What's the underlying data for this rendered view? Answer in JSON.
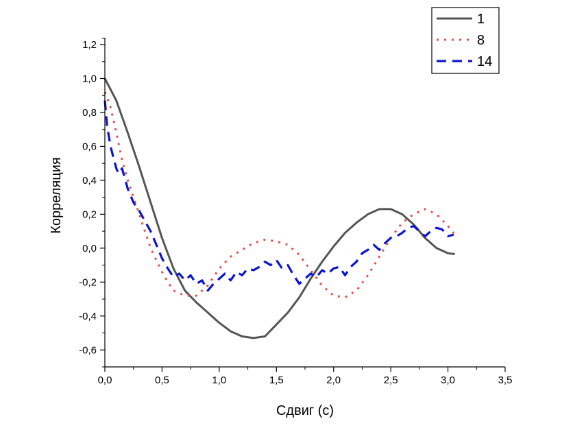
{
  "chart_data": {
    "type": "line",
    "title": "",
    "xlabel": "Сдвиг (с)",
    "ylabel": "Корреляция",
    "xlim": [
      0,
      3.5
    ],
    "ylim": [
      -0.7,
      1.2
    ],
    "x_ticks": [
      0,
      0.5,
      1,
      1.5,
      2,
      2.5,
      3,
      3.5
    ],
    "x_tick_labels": [
      "0,0",
      "0,5",
      "1,0",
      "1,5",
      "2,0",
      "2,5",
      "3,0",
      "3,5"
    ],
    "y_ticks": [
      -0.6,
      -0.4,
      -0.2,
      0,
      0.2,
      0.4,
      0.6,
      0.8,
      1.0,
      1.2
    ],
    "y_tick_labels": [
      "-0,6",
      "-0,4",
      "-0,2",
      "0,0",
      "0,2",
      "0,4",
      "0,6",
      "0,8",
      "1,0",
      "1,2"
    ],
    "grid": false,
    "legend_position": "top-right",
    "series": [
      {
        "name": "1",
        "color": "#555555",
        "style": "solid",
        "x": [
          0,
          0.1,
          0.2,
          0.3,
          0.4,
          0.5,
          0.6,
          0.7,
          0.8,
          0.9,
          1.0,
          1.1,
          1.2,
          1.3,
          1.4,
          1.5,
          1.6,
          1.7,
          1.8,
          1.9,
          2.0,
          2.1,
          2.2,
          2.3,
          2.4,
          2.5,
          2.6,
          2.7,
          2.8,
          2.9,
          3.0,
          3.06
        ],
        "y": [
          1.0,
          0.87,
          0.68,
          0.48,
          0.27,
          0.06,
          -0.12,
          -0.25,
          -0.32,
          -0.38,
          -0.44,
          -0.49,
          -0.52,
          -0.53,
          -0.52,
          -0.45,
          -0.38,
          -0.29,
          -0.18,
          -0.08,
          0.01,
          0.09,
          0.15,
          0.2,
          0.23,
          0.23,
          0.2,
          0.14,
          0.06,
          0.0,
          -0.03,
          -0.035
        ]
      },
      {
        "name": "8",
        "color": "#e0524a",
        "style": "dotted",
        "x": [
          0,
          0.05,
          0.1,
          0.15,
          0.2,
          0.3,
          0.4,
          0.5,
          0.55,
          0.6,
          0.7,
          0.8,
          0.9,
          1.0,
          1.1,
          1.2,
          1.3,
          1.4,
          1.5,
          1.6,
          1.7,
          1.8,
          1.9,
          2.0,
          2.1,
          2.2,
          2.3,
          2.4,
          2.5,
          2.6,
          2.7,
          2.8,
          2.9,
          3.0,
          3.06
        ],
        "y": [
          0.92,
          0.83,
          0.68,
          0.52,
          0.4,
          0.2,
          0.0,
          -0.14,
          -0.2,
          -0.25,
          -0.28,
          -0.28,
          -0.22,
          -0.12,
          -0.05,
          -0.01,
          0.03,
          0.05,
          0.04,
          0.02,
          -0.04,
          -0.13,
          -0.22,
          -0.28,
          -0.29,
          -0.25,
          -0.16,
          -0.05,
          0.06,
          0.15,
          0.2,
          0.23,
          0.2,
          0.13,
          0.08
        ]
      },
      {
        "name": "14",
        "color": "#0a14d2",
        "style": "dashed",
        "x": [
          0,
          0.02,
          0.05,
          0.08,
          0.1,
          0.12,
          0.15,
          0.18,
          0.2,
          0.25,
          0.3,
          0.35,
          0.4,
          0.45,
          0.5,
          0.55,
          0.6,
          0.65,
          0.7,
          0.75,
          0.8,
          0.85,
          0.9,
          0.95,
          1.0,
          1.05,
          1.1,
          1.15,
          1.2,
          1.25,
          1.3,
          1.35,
          1.4,
          1.45,
          1.5,
          1.55,
          1.6,
          1.65,
          1.7,
          1.75,
          1.8,
          1.85,
          1.9,
          1.95,
          2.0,
          2.05,
          2.1,
          2.15,
          2.2,
          2.25,
          2.3,
          2.35,
          2.4,
          2.45,
          2.5,
          2.55,
          2.6,
          2.65,
          2.7,
          2.75,
          2.8,
          2.85,
          2.9,
          2.95,
          3.0,
          3.05
        ],
        "y": [
          0.87,
          0.72,
          0.6,
          0.52,
          0.47,
          0.44,
          0.47,
          0.4,
          0.35,
          0.27,
          0.22,
          0.16,
          0.1,
          0.02,
          -0.06,
          -0.12,
          -0.17,
          -0.15,
          -0.19,
          -0.16,
          -0.21,
          -0.19,
          -0.25,
          -0.21,
          -0.18,
          -0.15,
          -0.19,
          -0.14,
          -0.16,
          -0.12,
          -0.13,
          -0.11,
          -0.08,
          -0.1,
          -0.07,
          -0.12,
          -0.1,
          -0.16,
          -0.21,
          -0.18,
          -0.15,
          -0.17,
          -0.13,
          -0.15,
          -0.12,
          -0.11,
          -0.16,
          -0.11,
          -0.08,
          -0.03,
          -0.01,
          0.02,
          -0.01,
          0.03,
          0.06,
          0.07,
          0.09,
          0.12,
          0.13,
          0.1,
          0.07,
          0.1,
          0.12,
          0.11,
          0.07,
          0.08
        ]
      }
    ]
  }
}
